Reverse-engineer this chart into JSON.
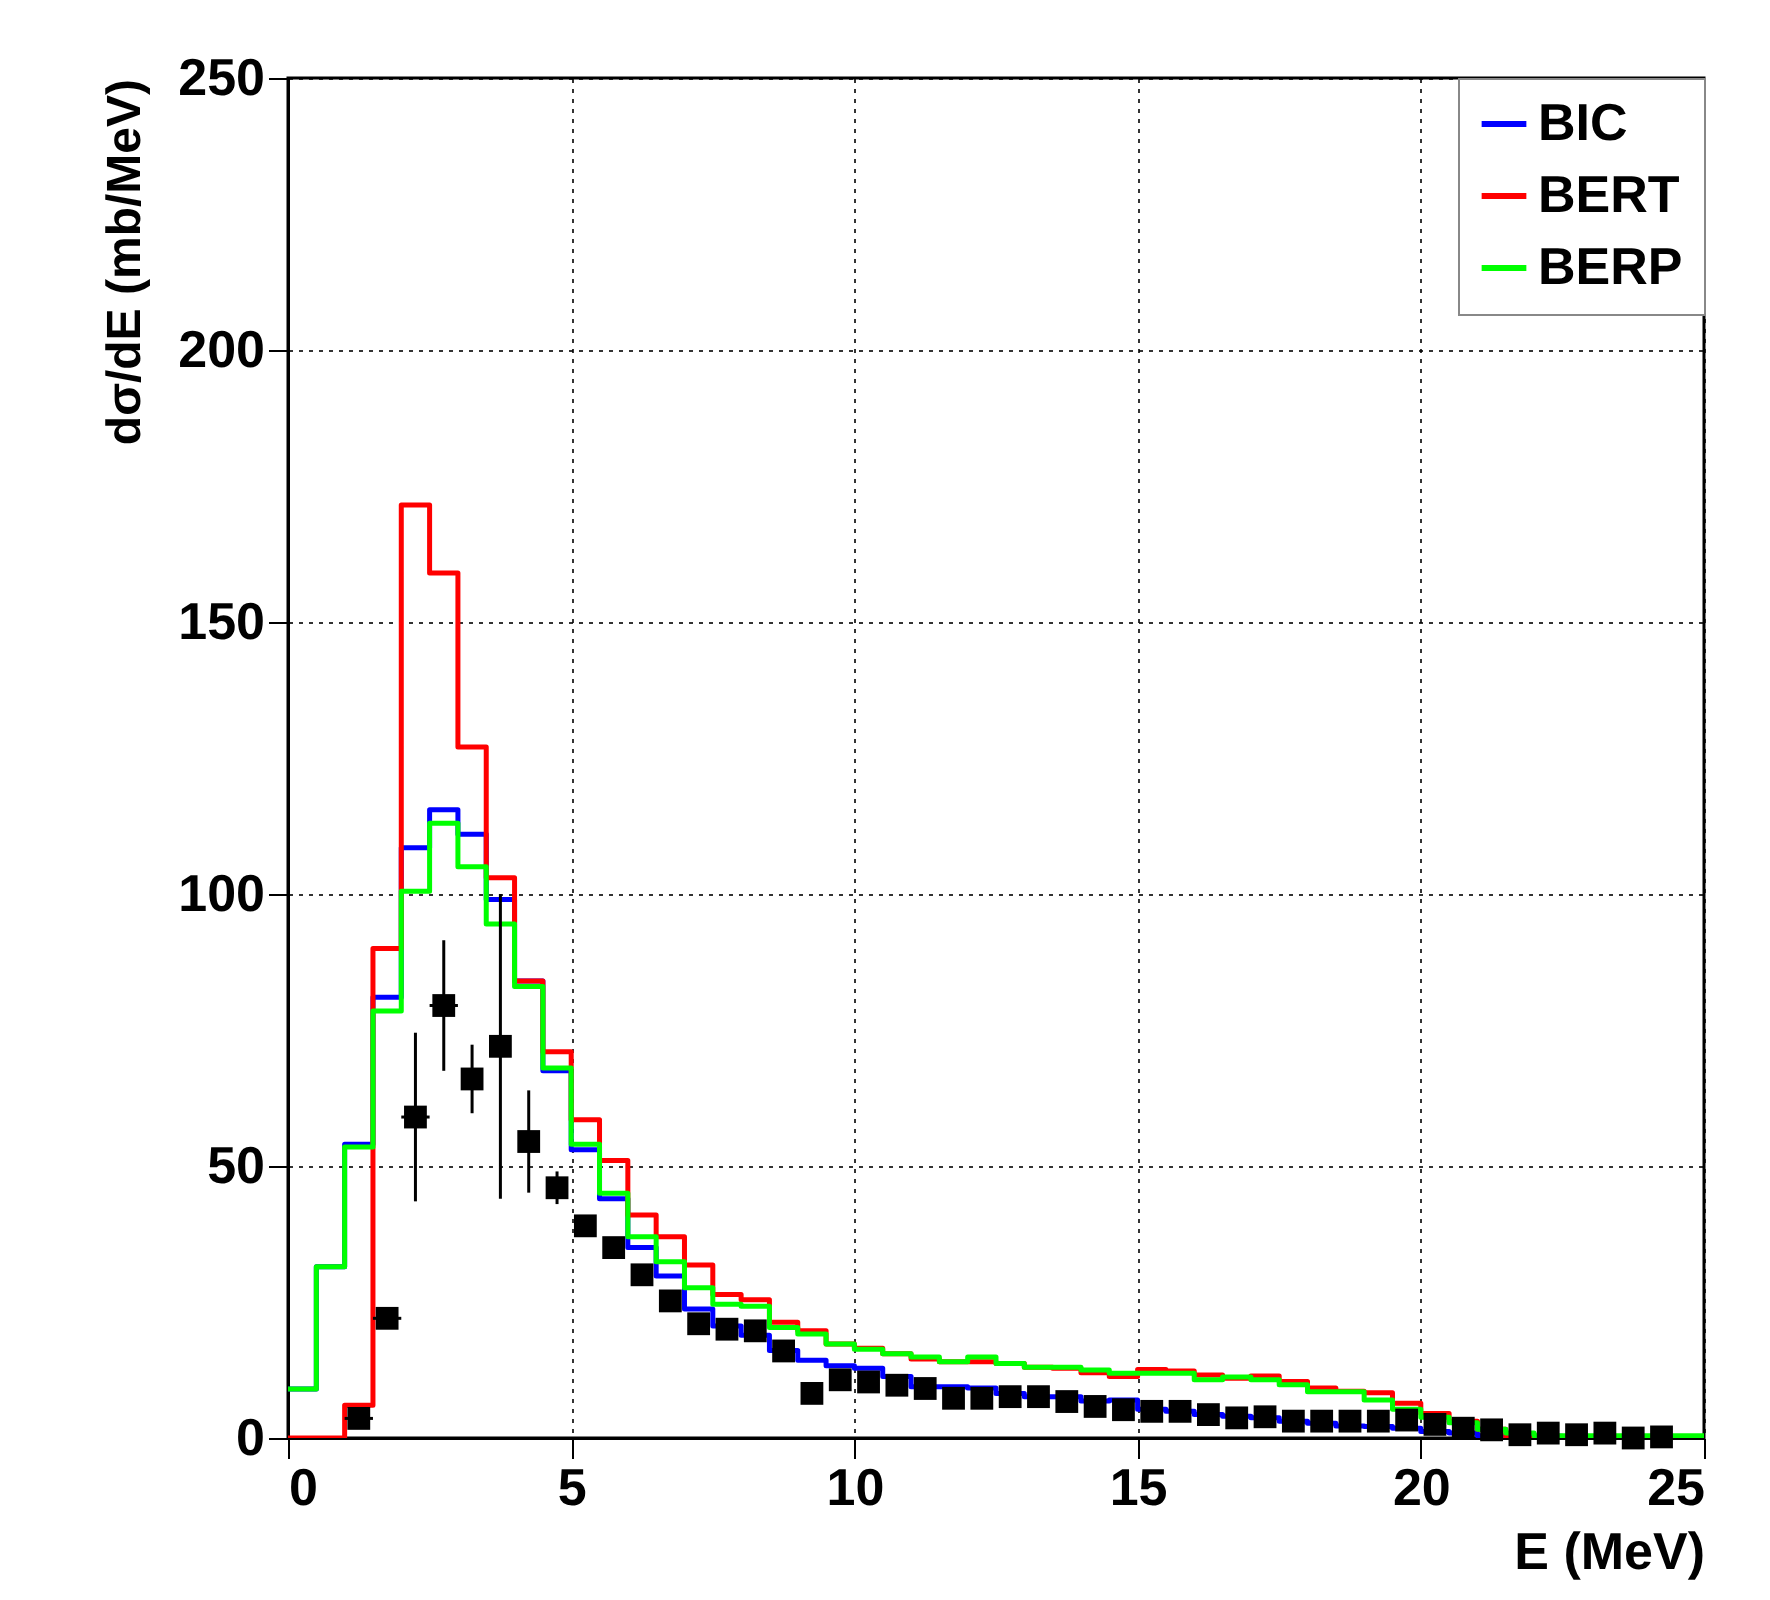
{
  "chart_data": {
    "type": "histogram",
    "xlabel": "E (MeV)",
    "ylabel": "dσ/dE (mb/MeV)",
    "bins": [
      0,
      0.5,
      1,
      1.5,
      2,
      2.5,
      3,
      3.5,
      4,
      4.5,
      5,
      5.5,
      6,
      6.5,
      7,
      7.5,
      8,
      8.5,
      9,
      9.5,
      10,
      10.5,
      11,
      11.5,
      12,
      12.5,
      13,
      13.5,
      14,
      14.5,
      15,
      15.5,
      16,
      16.5,
      17,
      17.5,
      18,
      18.5,
      19,
      19.5,
      20,
      20.5,
      21,
      21.5,
      22,
      22.5,
      23,
      23.5,
      24,
      24.5,
      25
    ],
    "series": [
      {
        "name": "BIC",
        "color": "#0000ff",
        "values": [
          9,
          31.5,
          54,
          81,
          108.5,
          115.5,
          111,
          99,
          84,
          67.5,
          53,
          44,
          35,
          29.8,
          23.7,
          20.6,
          18.9,
          16.1,
          14.3,
          13.3,
          12.8,
          11.3,
          9.4,
          9.4,
          9.2,
          8.2,
          7.6,
          7.6,
          6.8,
          7,
          5.3,
          4.9,
          4.3,
          4,
          3.7,
          3.1,
          2.7,
          2.2,
          2.1,
          1.8,
          1.2,
          0.9,
          0.4,
          0.3,
          0.3,
          0.2,
          0.2,
          0.2,
          0.2,
          0.2
        ]
      },
      {
        "name": "BERT",
        "color": "#ff0000",
        "values": [
          0,
          0,
          6,
          90,
          171.5,
          159,
          127,
          103,
          84,
          71,
          58.5,
          51,
          41,
          37,
          31.8,
          26.4,
          25.4,
          21.3,
          19.7,
          17.3,
          16.5,
          15.5,
          14.5,
          14,
          14,
          13.7,
          13,
          12.8,
          12,
          11.3,
          12.6,
          12.3,
          11.6,
          11,
          11.4,
          10.4,
          9.2,
          8.6,
          8.3,
          6.4,
          4.5,
          3.1,
          1.6,
          0,
          0,
          0,
          0,
          0,
          0,
          0
        ]
      },
      {
        "name": "BERP",
        "color": "#00ff00",
        "values": [
          9,
          31.5,
          53.5,
          78.5,
          100.5,
          113,
          105,
          94.5,
          83,
          68,
          54,
          45,
          37,
          32.4,
          27.6,
          24.6,
          24.2,
          20.3,
          19.1,
          17.3,
          16.3,
          15.5,
          14.9,
          14,
          14.9,
          13.7,
          13,
          13,
          12.5,
          11.9,
          11.9,
          11.9,
          10.7,
          11.2,
          10.7,
          9.8,
          8.5,
          8.5,
          7,
          5.3,
          3.8,
          2.8,
          1.6,
          0.9,
          0.4,
          0.4,
          0.4,
          0.4,
          0.4,
          0.4
        ]
      },
      {
        "type": "scatter",
        "color": "#000000",
        "x": [
          1.25,
          1.75,
          2.25,
          2.75,
          3.25,
          3.75,
          4.25,
          4.75,
          5.25,
          5.75,
          6.25,
          6.75,
          7.25,
          7.75,
          8.25,
          8.75,
          9.25,
          9.75,
          10.25,
          10.75,
          11.25,
          11.75,
          12.25,
          12.75,
          13.25,
          13.75,
          14.25,
          14.75,
          15.25,
          15.75,
          16.25,
          16.75,
          17.25,
          17.75,
          18.25,
          18.75,
          19.25,
          19.75,
          20.25,
          20.75,
          21.25,
          21.75,
          22.25,
          22.75,
          23.25,
          23.75,
          24.25
        ],
        "values": [
          3.6,
          22,
          59,
          79.5,
          66,
          72,
          54.5,
          46,
          39,
          35,
          30,
          25.2,
          21,
          20,
          19.7,
          16,
          8.2,
          10.7,
          10.3,
          9.7,
          9.1,
          7.3,
          7.3,
          7.6,
          7.6,
          6.7,
          5.8,
          5.2,
          4.9,
          4.9,
          4.3,
          3.7,
          3.9,
          3.1,
          3.1,
          3.1,
          3.1,
          3.3,
          2.5,
          1.8,
          1.5,
          0.6,
          0.9,
          0.6,
          0.9,
          0,
          0.2
        ],
        "errors": [
          null,
          null,
          15.5,
          12,
          6.3,
          28,
          9.4,
          3,
          null,
          null,
          null,
          null,
          null,
          null,
          null,
          null,
          null,
          null,
          null,
          null,
          null,
          null,
          null,
          null,
          null,
          null,
          null,
          null,
          null,
          null,
          null,
          null,
          null,
          null,
          null,
          null,
          null,
          null,
          null,
          null,
          null,
          null,
          null,
          null,
          null,
          null,
          null
        ],
        "xerrors": [
          0.25,
          0.25,
          0.25,
          0.25,
          null,
          null,
          null,
          null,
          null,
          null,
          null,
          null,
          null,
          null,
          null,
          null,
          null,
          null,
          null,
          null,
          null,
          null,
          null,
          null,
          null,
          null,
          null,
          null,
          null,
          null,
          null,
          null,
          null,
          null,
          null,
          null,
          null,
          null,
          null,
          null,
          null,
          null,
          null,
          null,
          null,
          null,
          null
        ]
      }
    ],
    "xlim": [
      0,
      25
    ],
    "xticks": [
      0,
      5,
      10,
      15,
      20,
      25
    ],
    "ylim": [
      0,
      250
    ],
    "yticks": [
      0,
      50,
      100,
      150,
      200,
      250
    ],
    "grid": true,
    "legend": "top right",
    "marker": "square"
  }
}
